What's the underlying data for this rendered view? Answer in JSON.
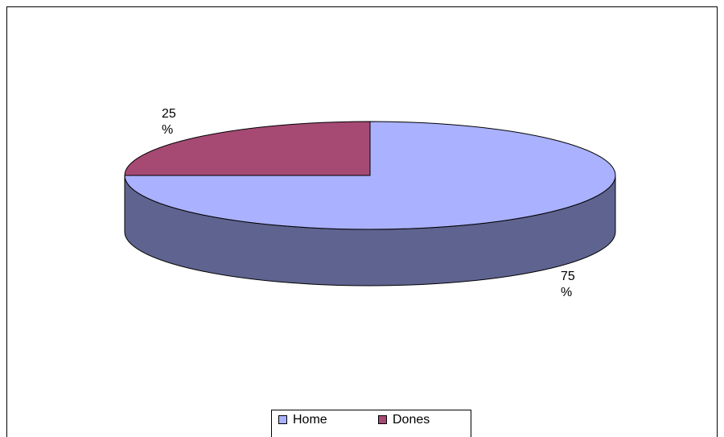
{
  "chart_data": {
    "type": "pie",
    "categories": [
      "Home",
      "Dones"
    ],
    "values": [
      75,
      25
    ],
    "value_labels": [
      "75 %",
      "25 %"
    ],
    "colors": [
      "#aab1ff",
      "#a64a74"
    ],
    "legend": "bottom"
  }
}
